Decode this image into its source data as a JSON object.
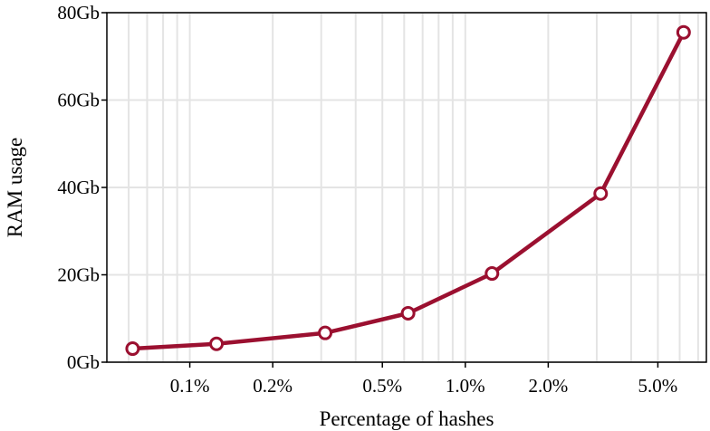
{
  "chart_data": {
    "type": "line",
    "xlabel": "Percentage of hashes",
    "ylabel": "RAM usage",
    "x_scale": "log",
    "xlim": [
      0.05,
      7.5
    ],
    "ylim": [
      0,
      80
    ],
    "grid": true,
    "x_ticks": [
      {
        "value": 0.1,
        "label": "0.1%"
      },
      {
        "value": 0.2,
        "label": "0.2%"
      },
      {
        "value": 0.5,
        "label": "0.5%"
      },
      {
        "value": 1.0,
        "label": "1.0%"
      },
      {
        "value": 2.0,
        "label": "2.0%"
      },
      {
        "value": 5.0,
        "label": "5.0%"
      }
    ],
    "y_ticks": [
      {
        "value": 0,
        "label": "0Gb"
      },
      {
        "value": 20,
        "label": "20Gb"
      },
      {
        "value": 40,
        "label": "40Gb"
      },
      {
        "value": 60,
        "label": "60Gb"
      },
      {
        "value": 80,
        "label": "80Gb"
      }
    ],
    "series": [
      {
        "color": "#9b1030",
        "points": [
          {
            "x": 0.062,
            "y": 3.1
          },
          {
            "x": 0.125,
            "y": 4.2
          },
          {
            "x": 0.31,
            "y": 6.7
          },
          {
            "x": 0.62,
            "y": 11.2
          },
          {
            "x": 1.25,
            "y": 20.3
          },
          {
            "x": 3.1,
            "y": 38.6
          },
          {
            "x": 6.2,
            "y": 75.5
          }
        ]
      }
    ]
  }
}
